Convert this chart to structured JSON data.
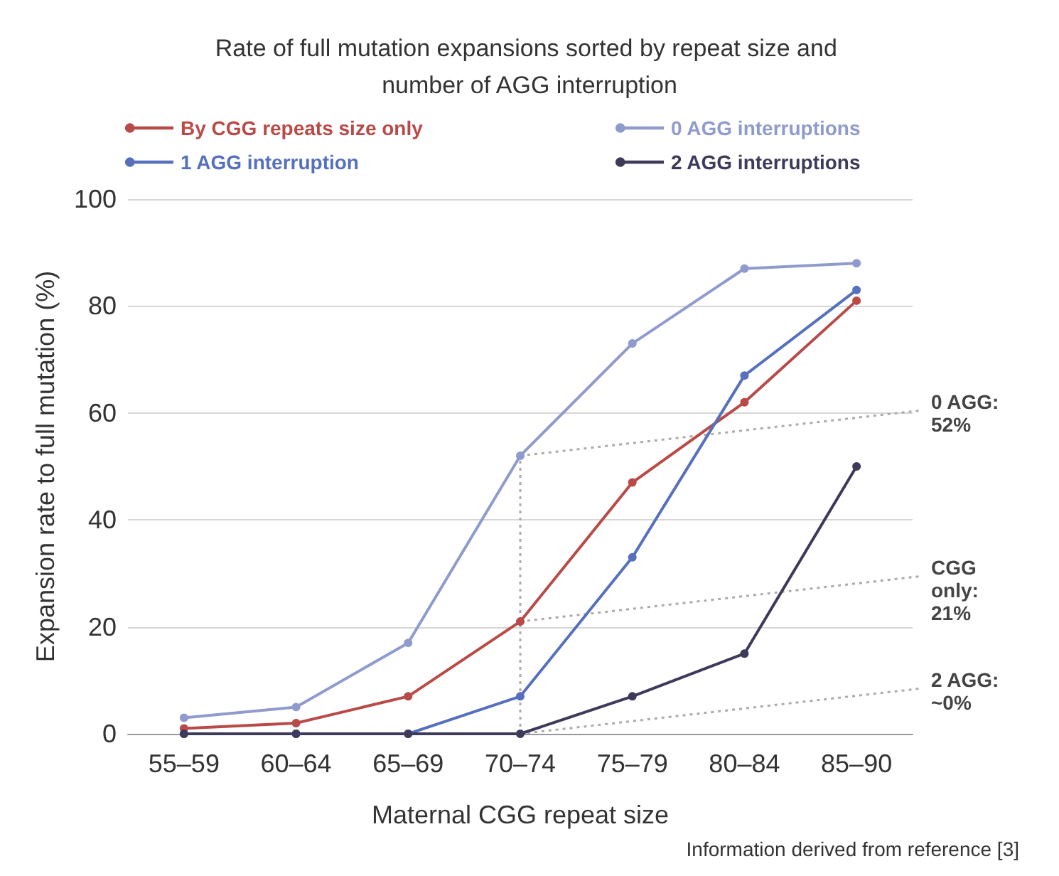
{
  "chart_data": {
    "type": "line",
    "title": "Rate of full mutation expansions sorted by repeat size and number of AGG interruption",
    "xlabel": "Maternal CGG repeat size",
    "ylabel": "Expansion rate to full mutation (%)",
    "categories": [
      "55–59",
      "60–64",
      "65–69",
      "70–74",
      "75–79",
      "80–84",
      "85–90"
    ],
    "series": [
      {
        "name": "By CGG repeats size only",
        "color": "#b94a48",
        "values": [
          1,
          2,
          7,
          21,
          47,
          62,
          81
        ]
      },
      {
        "name": "0 AGG interruptions",
        "color": "#8f9bcd",
        "values": [
          3,
          5,
          17,
          52,
          73,
          87,
          88
        ]
      },
      {
        "name": "1 AGG interruption",
        "color": "#5670bd",
        "values": [
          0,
          0,
          0,
          7,
          33,
          67,
          83
        ]
      },
      {
        "name": "2 AGG interruptions",
        "color": "#3d3a5a",
        "values": [
          0,
          0,
          0,
          0,
          7,
          15,
          50
        ]
      }
    ],
    "ref_lines": [
      {
        "axis": "x",
        "value": "70–74",
        "color": "#aaaaaa",
        "line_style": "dotted"
      }
    ],
    "ylim": [
      0,
      100
    ],
    "yticks": [
      0,
      20,
      40,
      60,
      80,
      100
    ],
    "grid": "y",
    "legend": "top",
    "marker": "circle",
    "line_style": "solid",
    "annotations": [
      {
        "text": "0 AGG: 52%",
        "x": "70–74",
        "y": 52
      },
      {
        "text": "CGG only: 21%",
        "x": "70–74",
        "y": 21
      },
      {
        "text": "2 AGG: ~0%",
        "x": "70–74",
        "y": 0
      },
      "Information derived from reference [3]"
    ]
  }
}
